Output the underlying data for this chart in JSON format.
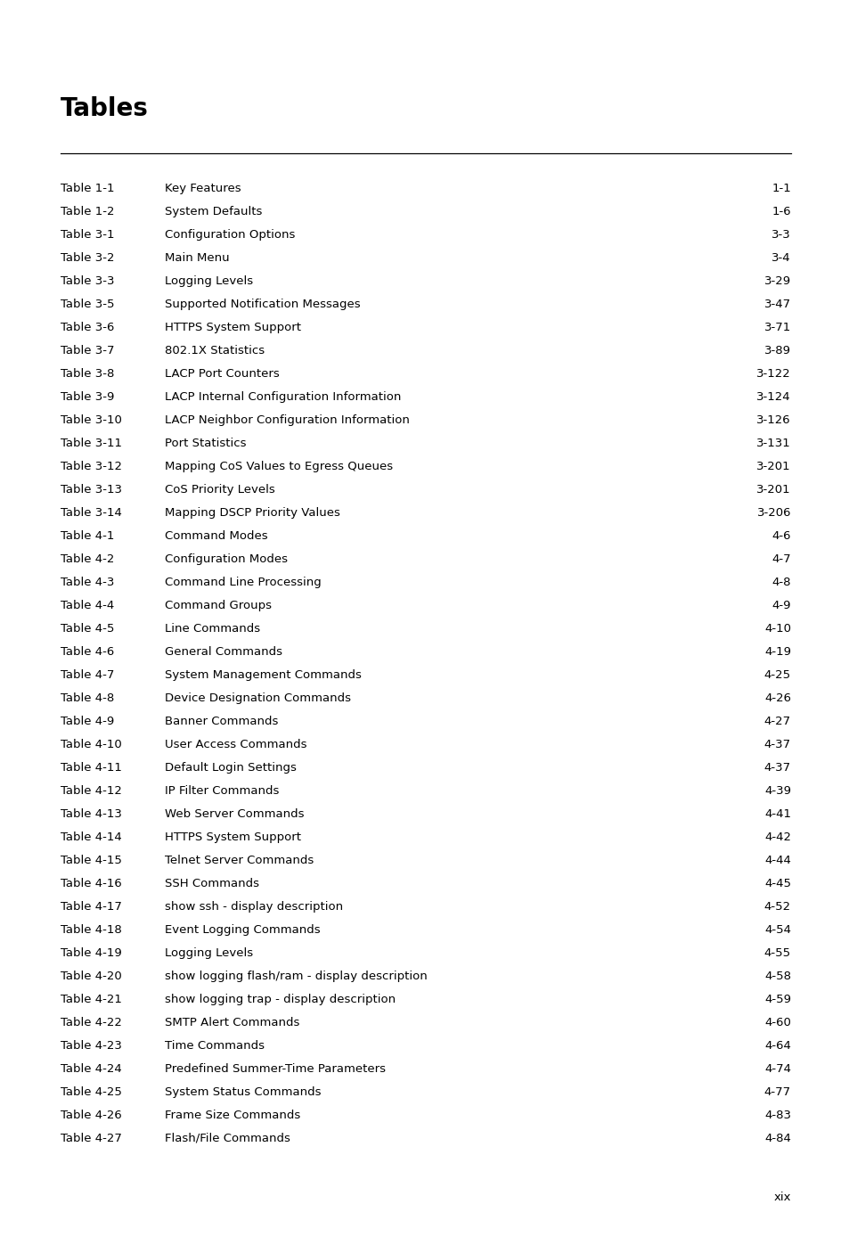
{
  "title": "Tables",
  "title_fontsize": 20,
  "background_color": "#ffffff",
  "text_color": "#000000",
  "font_family": "DejaVu Sans",
  "font_size": 9.5,
  "footer_text": "xix",
  "entries": [
    [
      "Table 1-1",
      "Key Features",
      "1-1"
    ],
    [
      "Table 1-2",
      "System Defaults",
      "1-6"
    ],
    [
      "Table 3-1",
      "Configuration Options",
      "3-3"
    ],
    [
      "Table 3-2",
      "Main Menu",
      "3-4"
    ],
    [
      "Table 3-3",
      "Logging Levels",
      "3-29"
    ],
    [
      "Table 3-5",
      "Supported Notification Messages",
      "3-47"
    ],
    [
      "Table 3-6",
      "HTTPS System Support",
      "3-71"
    ],
    [
      "Table 3-7",
      "802.1X Statistics",
      "3-89"
    ],
    [
      "Table 3-8",
      "LACP Port Counters",
      "3-122"
    ],
    [
      "Table 3-9",
      "LACP Internal Configuration Information",
      "3-124"
    ],
    [
      "Table 3-10",
      "LACP Neighbor Configuration Information",
      "3-126"
    ],
    [
      "Table 3-11",
      "Port Statistics",
      "3-131"
    ],
    [
      "Table 3-12",
      "Mapping CoS Values to Egress Queues",
      "3-201"
    ],
    [
      "Table 3-13",
      "CoS Priority Levels",
      "3-201"
    ],
    [
      "Table 3-14",
      "Mapping DSCP Priority Values",
      "3-206"
    ],
    [
      "Table 4-1",
      "Command Modes",
      "4-6"
    ],
    [
      "Table 4-2",
      "Configuration Modes",
      "4-7"
    ],
    [
      "Table 4-3",
      "Command Line Processing",
      "4-8"
    ],
    [
      "Table 4-4",
      "Command Groups",
      "4-9"
    ],
    [
      "Table 4-5",
      "Line Commands",
      "4-10"
    ],
    [
      "Table 4-6",
      "General Commands",
      "4-19"
    ],
    [
      "Table 4-7",
      "System Management Commands",
      "4-25"
    ],
    [
      "Table 4-8",
      "Device Designation Commands",
      "4-26"
    ],
    [
      "Table 4-9",
      "Banner Commands",
      "4-27"
    ],
    [
      "Table 4-10",
      "User Access Commands",
      "4-37"
    ],
    [
      "Table 4-11",
      "Default Login Settings",
      "4-37"
    ],
    [
      "Table 4-12",
      "IP Filter Commands",
      "4-39"
    ],
    [
      "Table 4-13",
      "Web Server Commands",
      "4-41"
    ],
    [
      "Table 4-14",
      "HTTPS System Support",
      "4-42"
    ],
    [
      "Table 4-15",
      "Telnet Server Commands",
      "4-44"
    ],
    [
      "Table 4-16",
      "SSH Commands",
      "4-45"
    ],
    [
      "Table 4-17",
      "show ssh - display description",
      "4-52"
    ],
    [
      "Table 4-18",
      "Event Logging Commands",
      "4-54"
    ],
    [
      "Table 4-19",
      "Logging Levels",
      "4-55"
    ],
    [
      "Table 4-20",
      "show logging flash/ram - display description",
      "4-58"
    ],
    [
      "Table 4-21",
      "show logging trap - display description",
      "4-59"
    ],
    [
      "Table 4-22",
      "SMTP Alert Commands",
      "4-60"
    ],
    [
      "Table 4-23",
      "Time Commands",
      "4-64"
    ],
    [
      "Table 4-24",
      "Predefined Summer-Time Parameters",
      "4-74"
    ],
    [
      "Table 4-25",
      "System Status Commands",
      "4-77"
    ],
    [
      "Table 4-26",
      "Frame Size Commands",
      "4-83"
    ],
    [
      "Table 4-27",
      "Flash/File Commands",
      "4-84"
    ]
  ]
}
